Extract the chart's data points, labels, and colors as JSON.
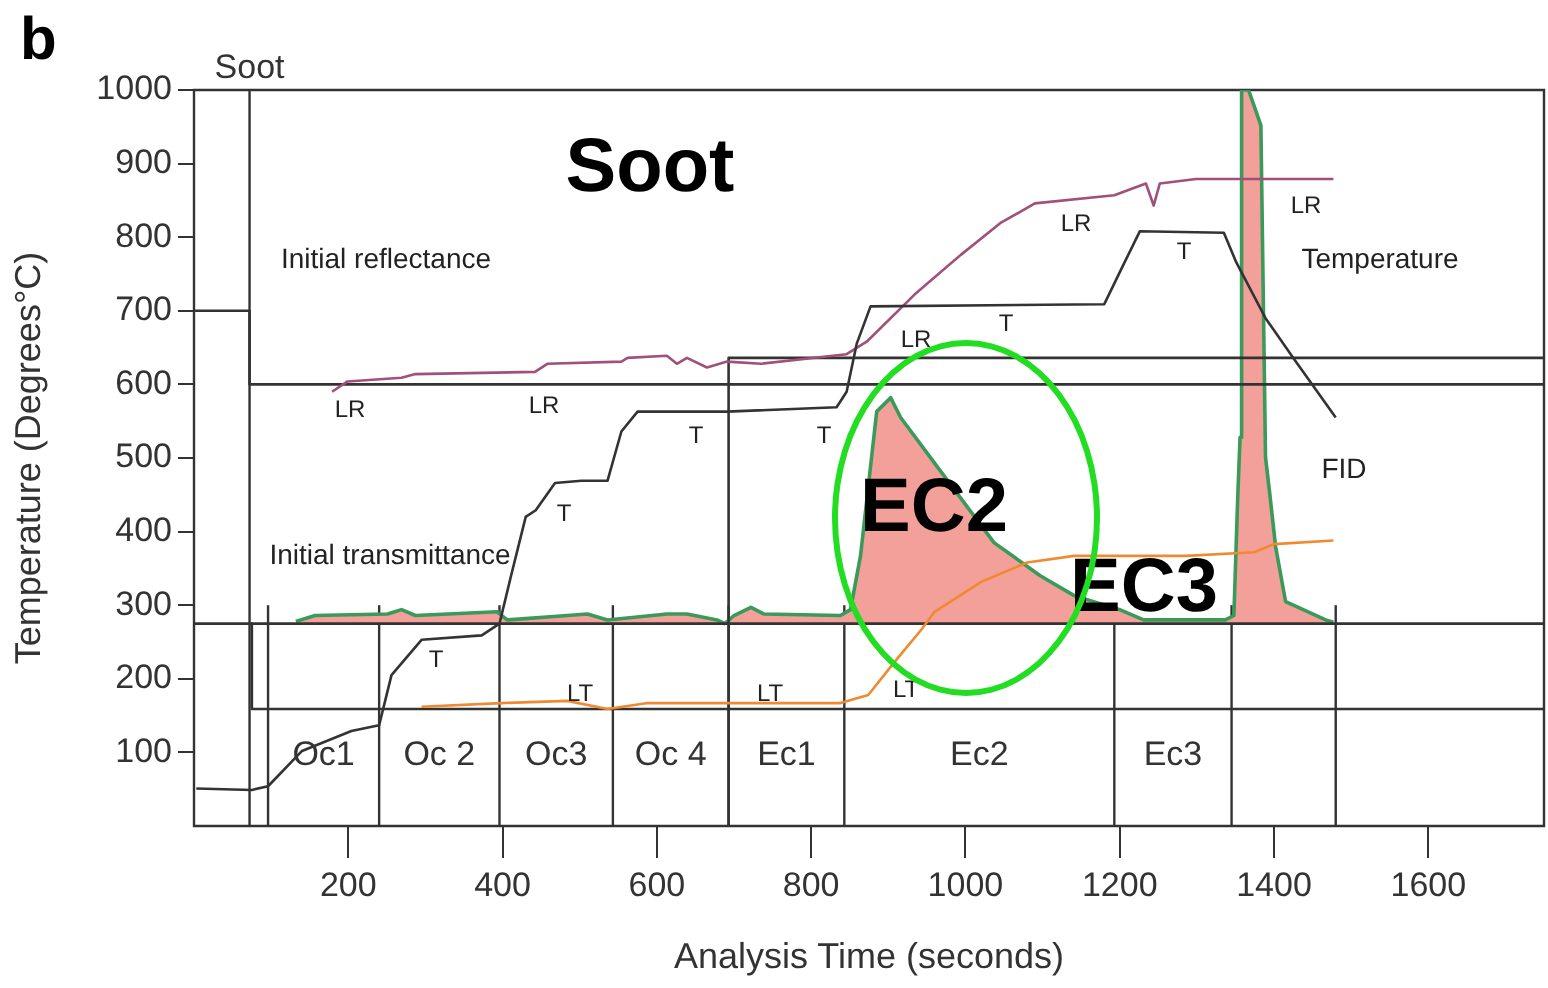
{
  "chart_data": {
    "type": "line",
    "xlabel": "Analysis Time (seconds)",
    "ylabel": "Temperature (Degrees°C)",
    "xlim": [
      0,
      1750
    ],
    "xticks": [
      200,
      400,
      600,
      800,
      1000,
      1200,
      1400,
      1600
    ],
    "ylim": [
      0,
      1000
    ],
    "yticks": [
      100,
      200,
      300,
      400,
      500,
      600,
      700,
      800,
      900,
      1000
    ],
    "grid": false,
    "legend": false,
    "marker": "none",
    "line_style": "solid",
    "series": [
      {
        "type": "area",
        "color": "#f4a09a",
        "x": [
          132,
          157,
          251,
          269,
          287,
          393,
          406,
          484,
          510,
          536,
          613,
          639,
          678,
          688,
          700,
          722,
          739,
          838,
          851,
          864,
          885,
          903,
          916,
          960,
          1037,
          1097,
          1141,
          1200,
          1231,
          1337,
          1348,
          1353,
          1356,
          1358,
          1367,
          1383,
          1389,
          1395,
          1402,
          1415,
          1467,
          1477
        ],
        "values": [
          278,
          286,
          288,
          294,
          286,
          291,
          280,
          286,
          288,
          280,
          288,
          288,
          280,
          275,
          286,
          297,
          288,
          286,
          294,
          367,
          563,
          582,
          555,
          493,
          385,
          340,
          313,
          294,
          280,
          280,
          286,
          447,
          528,
          1000,
          1000,
          952,
          501,
          447,
          380,
          305,
          280,
          277
        ]
      },
      {
        "color": "#333333",
        "x": [
          3,
          75,
          96,
          140,
          204,
          240,
          256,
          295,
          373,
          396,
          411,
          430,
          443,
          468,
          502,
          536,
          554,
          575,
          691,
          833,
          846,
          859,
          877,
          1180,
          1205,
          1226,
          1335,
          1351,
          1389,
          1425,
          1480
        ],
        "values": [
          51,
          49,
          54,
          102,
          129,
          137,
          205,
          253,
          259,
          275,
          340,
          420,
          429,
          466,
          469,
          469,
          536,
          563,
          563,
          569,
          590,
          655,
          706,
          709,
          763,
          808,
          806,
          766,
          690,
          636,
          555
        ]
      },
      {
        "color": "#a0507a",
        "x": [
          179,
          199,
          269,
          287,
          442,
          458,
          554,
          562,
          613,
          626,
          639,
          665,
          691,
          735,
          846,
          872,
          934,
          994,
          1045,
          1090,
          1193,
          1234,
          1244,
          1252,
          1299,
          1358,
          1477
        ],
        "values": [
          590,
          604,
          609,
          614,
          617,
          628,
          631,
          636,
          639,
          628,
          636,
          623,
          631,
          628,
          641,
          658,
          722,
          776,
          819,
          846,
          857,
          873,
          843,
          873,
          879,
          879,
          879
        ]
      },
      {
        "color": "#f08a30",
        "x": [
          295,
          398,
          484,
          536,
          588,
          787,
          838,
          874,
          909,
          943,
          960,
          1021,
          1080,
          1141,
          1286,
          1374,
          1400,
          1477
        ],
        "values": [
          162,
          167,
          170,
          159,
          167,
          167,
          167,
          178,
          224,
          267,
          291,
          332,
          358,
          367,
          367,
          372,
          383,
          388
        ]
      },
      {
        "color": "#333333",
        "x": [
          0,
          72,
          72,
          1750
        ],
        "values": [
          700,
          700,
          600,
          600
        ]
      },
      {
        "color": "#333333",
        "x": [
          0,
          1750
        ],
        "values": [
          275,
          275
        ]
      },
      {
        "color": "#333333",
        "x": [
          75,
          75,
          1750
        ],
        "values": [
          275,
          159,
          159
        ]
      },
      {
        "color": "#333333",
        "x": [
          693,
          693,
          1750
        ],
        "values": [
          0,
          636,
          636
        ]
      }
    ],
    "ref_lines": [
      {
        "axis": "x",
        "value": 72,
        "label": "Soot",
        "color": "#333333"
      },
      {
        "axis": "x",
        "value": 96,
        "color": "#333333"
      },
      {
        "axis": "x",
        "value": 240,
        "color": "#333333"
      },
      {
        "axis": "x",
        "value": 396,
        "color": "#333333"
      },
      {
        "axis": "x",
        "value": 543,
        "color": "#333333"
      },
      {
        "axis": "x",
        "value": 693,
        "color": "#333333"
      },
      {
        "axis": "x",
        "value": 843,
        "color": "#333333"
      },
      {
        "axis": "x",
        "value": 1193,
        "color": "#333333"
      },
      {
        "axis": "x",
        "value": 1345,
        "color": "#333333"
      },
      {
        "axis": "x",
        "value": 1480,
        "color": "#333333"
      }
    ],
    "annotations": [
      "b",
      "Oc1",
      "Oc 2",
      "Oc3",
      "Oc 4",
      "Ec1",
      "Ec2",
      "Ec3",
      "Soot",
      "EC2",
      "EC3",
      "Initial reflectance",
      "Initial transmittance",
      "Temperature",
      "FID",
      "LR",
      "LR",
      "LR",
      "LR",
      "LR",
      "T",
      "T",
      "T",
      "T",
      "T",
      "T",
      "LT",
      "LT",
      "LT"
    ]
  }
}
